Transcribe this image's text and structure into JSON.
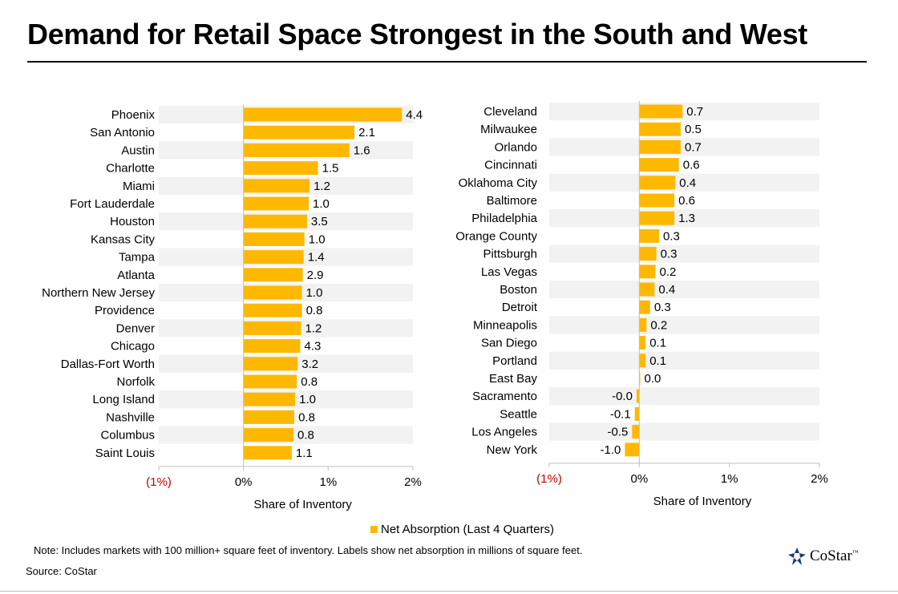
{
  "title": "Demand for Retail Space Strongest in the South and West",
  "legend": {
    "label": "Net Absorption (Last 4 Quarters)"
  },
  "note": "Note: Includes markets with  100 million+ square feet of inventory. Labels show net absorption in millions of square feet.",
  "source": "Source: CoStar",
  "logo": {
    "text": "CoStar",
    "tm": "™"
  },
  "colors": {
    "bar": "#FFB800",
    "band": "#F2F2F2",
    "negative_tick": "#C00000",
    "axis": "#BFBFBF"
  },
  "chart_data": [
    {
      "type": "bar",
      "orientation": "horizontal",
      "xlabel": "Share of Inventory",
      "xlim": [
        -1,
        2
      ],
      "ticks": [
        -1,
        0,
        1,
        2
      ],
      "tick_labels": [
        "(1%)",
        "0%",
        "1%",
        "2%"
      ],
      "categories": [
        "Phoenix",
        "San Antonio",
        "Austin",
        "Charlotte",
        "Miami",
        "Fort Lauderdale",
        "Houston",
        "Kansas City",
        "Tampa",
        "Atlanta",
        "Northern New Jersey",
        "Providence",
        "Denver",
        "Chicago",
        "Dallas-Fort Worth",
        "Norfolk",
        "Long Island",
        "Nashville",
        "Columbus",
        "Saint Louis"
      ],
      "values": [
        1.87,
        1.31,
        1.25,
        0.88,
        0.78,
        0.77,
        0.75,
        0.72,
        0.71,
        0.7,
        0.69,
        0.69,
        0.68,
        0.67,
        0.64,
        0.63,
        0.61,
        0.6,
        0.59,
        0.57
      ],
      "data_labels": [
        "4.4",
        "2.1",
        "1.6",
        "1.5",
        "1.2",
        "1.0",
        "3.5",
        "1.0",
        "1.4",
        "2.9",
        "1.0",
        "0.8",
        "1.2",
        "4.3",
        "3.2",
        "0.8",
        "1.0",
        "0.8",
        "0.8",
        "1.1"
      ]
    },
    {
      "type": "bar",
      "orientation": "horizontal",
      "xlabel": "Share of Inventory",
      "xlim": [
        -1,
        2
      ],
      "ticks": [
        -1,
        0,
        1,
        2
      ],
      "tick_labels": [
        "(1%)",
        "0%",
        "1%",
        "2%"
      ],
      "categories": [
        "Cleveland",
        "Milwaukee",
        "Orlando",
        "Cincinnati",
        "Oklahoma City",
        "Baltimore",
        "Philadelphia",
        "Orange County",
        "Pittsburgh",
        "Las Vegas",
        "Boston",
        "Detroit",
        "Minneapolis",
        "San Diego",
        "Portland",
        "East Bay",
        "Sacramento",
        "Seattle",
        "Los Angeles",
        "New York"
      ],
      "values": [
        0.48,
        0.46,
        0.46,
        0.44,
        0.4,
        0.39,
        0.39,
        0.22,
        0.19,
        0.18,
        0.17,
        0.12,
        0.08,
        0.07,
        0.07,
        0.01,
        -0.03,
        -0.05,
        -0.08,
        -0.16
      ],
      "data_labels": [
        "0.7",
        "0.5",
        "0.7",
        "0.6",
        "0.4",
        "0.6",
        "1.3",
        "0.3",
        "0.3",
        "0.2",
        "0.4",
        "0.3",
        "0.2",
        "0.1",
        "0.1",
        "0.0",
        "-0.0",
        "-0.1",
        "-0.5",
        "-1.0"
      ]
    }
  ]
}
